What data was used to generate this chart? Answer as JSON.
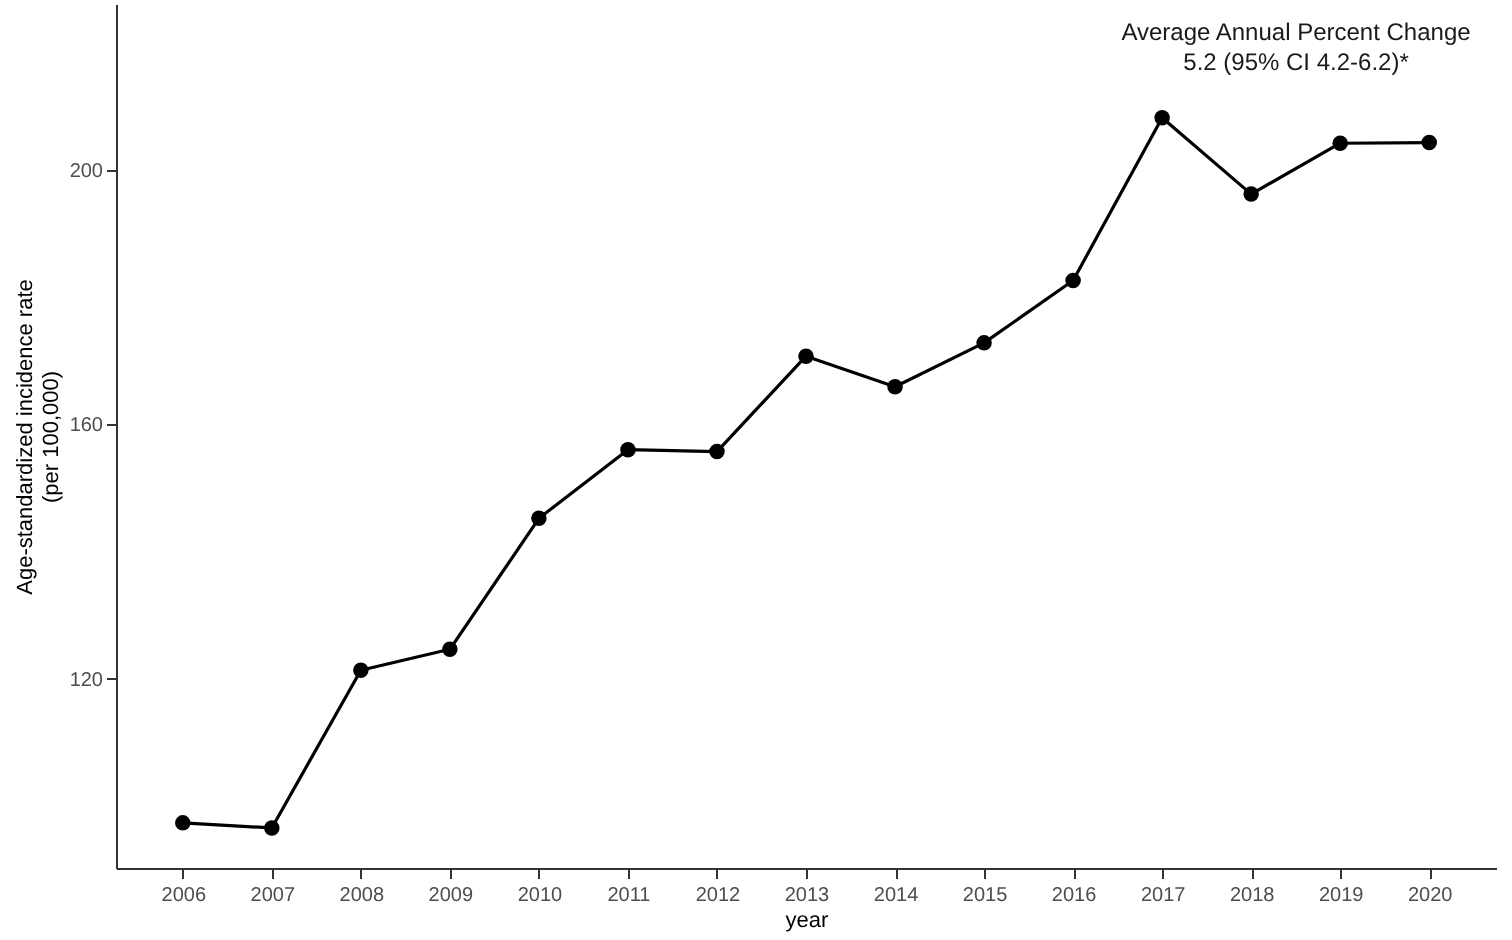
{
  "chart_data": {
    "type": "line",
    "xlabel": "year",
    "ylabel": "Age-standardized incidence rate\n(per 100,000)",
    "categories": [
      "2006",
      "2007",
      "2008",
      "2009",
      "2010",
      "2011",
      "2012",
      "2013",
      "2014",
      "2015",
      "2016",
      "2017",
      "2018",
      "2019",
      "2020"
    ],
    "series": [
      {
        "color": "#000000",
        "values": [
          97.3,
          96.5,
          121.3,
          124.6,
          145.2,
          156.0,
          155.7,
          170.7,
          165.9,
          172.8,
          182.6,
          208.2,
          196.2,
          204.2,
          204.3
        ]
      }
    ],
    "ylim": [
      90.2,
      226.1
    ],
    "yticks": [
      120,
      160,
      200
    ],
    "grid": false,
    "marker": "circle",
    "line_style": "solid",
    "annotations": [
      "Average Annual Percent Change",
      "5.2 (95% CI 4.2-6.2)*"
    ]
  }
}
